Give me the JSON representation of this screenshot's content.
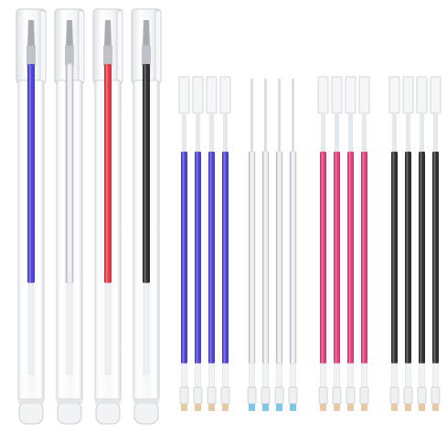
{
  "scene": {
    "background": "#ffffff",
    "ink_colors": {
      "blue": "#4a3fd8",
      "white": "#f1eef4",
      "red": "#e8353e",
      "pink": "#e63b7a",
      "black": "#2a2a2e"
    },
    "pens": [
      {
        "name": "pen-blue",
        "ink": "blue"
      },
      {
        "name": "pen-white",
        "ink": "white"
      },
      {
        "name": "pen-red",
        "ink": "red"
      },
      {
        "name": "pen-black",
        "ink": "black"
      }
    ],
    "refill_groups": [
      {
        "name": "refills-blue",
        "ink": "blue",
        "count": 4
      },
      {
        "name": "refills-white",
        "ink": "white",
        "count": 4
      },
      {
        "name": "refills-pink",
        "ink": "pink",
        "count": 4
      },
      {
        "name": "refills-black",
        "ink": "black",
        "count": 4
      }
    ]
  }
}
